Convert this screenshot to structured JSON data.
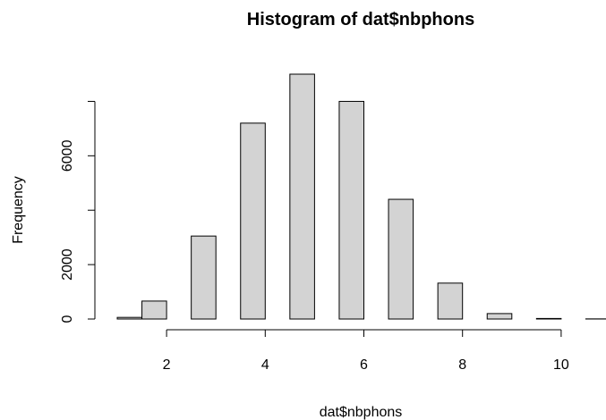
{
  "chart_data": {
    "type": "bar",
    "title": "Histogram of dat$nbphons",
    "xlabel": "dat$nbphons",
    "ylabel": "Frequency",
    "bar_color": "#d3d3d3",
    "border_color": "#000000",
    "bins": [
      {
        "x0": 1.0,
        "x1": 1.5,
        "value": 60
      },
      {
        "x0": 1.5,
        "x1": 2.0,
        "value": 660
      },
      {
        "x0": 2.0,
        "x1": 2.5,
        "value": 0
      },
      {
        "x0": 2.5,
        "x1": 3.0,
        "value": 3050
      },
      {
        "x0": 3.0,
        "x1": 3.5,
        "value": 0
      },
      {
        "x0": 3.5,
        "x1": 4.0,
        "value": 7200
      },
      {
        "x0": 4.0,
        "x1": 4.5,
        "value": 0
      },
      {
        "x0": 4.5,
        "x1": 5.0,
        "value": 9000
      },
      {
        "x0": 5.0,
        "x1": 5.5,
        "value": 0
      },
      {
        "x0": 5.5,
        "x1": 6.0,
        "value": 8000
      },
      {
        "x0": 6.0,
        "x1": 6.5,
        "value": 0
      },
      {
        "x0": 6.5,
        "x1": 7.0,
        "value": 4400
      },
      {
        "x0": 7.0,
        "x1": 7.5,
        "value": 0
      },
      {
        "x0": 7.5,
        "x1": 8.0,
        "value": 1320
      },
      {
        "x0": 8.0,
        "x1": 8.5,
        "value": 0
      },
      {
        "x0": 8.5,
        "x1": 9.0,
        "value": 200
      },
      {
        "x0": 9.0,
        "x1": 9.5,
        "value": 0
      },
      {
        "x0": 9.5,
        "x1": 10.0,
        "value": 20
      },
      {
        "x0": 10.0,
        "x1": 10.5,
        "value": 0
      },
      {
        "x0": 10.5,
        "x1": 11.0,
        "value": 5
      }
    ],
    "x_ticks": [
      2,
      4,
      6,
      8,
      10
    ],
    "y_ticks": [
      0,
      2000,
      4000,
      6000,
      8000
    ],
    "y_tick_labels": [
      "0",
      "2000",
      "",
      "6000",
      ""
    ],
    "xlim": [
      1,
      11
    ],
    "ylim": [
      0,
      9000
    ],
    "grid": false
  }
}
